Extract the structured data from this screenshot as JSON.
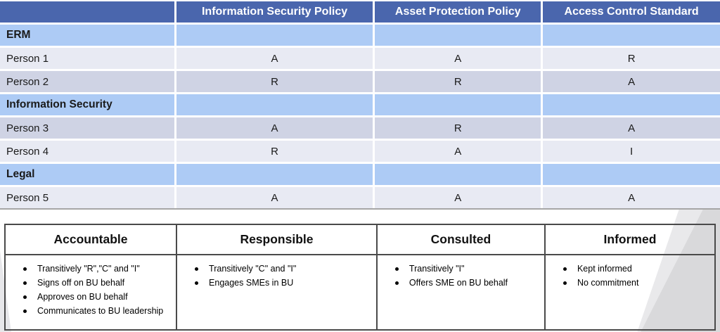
{
  "matrix_table": {
    "columns": [
      "",
      "Information Security Policy",
      "Asset Protection Policy",
      "Access Control Standard"
    ],
    "rows": [
      {
        "type": "section",
        "label": "ERM",
        "values": [
          "",
          "",
          ""
        ]
      },
      {
        "type": "person",
        "label": "Person 1",
        "values": [
          "A",
          "A",
          "R"
        ]
      },
      {
        "type": "person",
        "label": "Person 2",
        "values": [
          "R",
          "R",
          "A"
        ]
      },
      {
        "type": "section",
        "label": "Information Security",
        "values": [
          "",
          "",
          ""
        ]
      },
      {
        "type": "person",
        "label": "Person 3",
        "values": [
          "A",
          "R",
          "A"
        ]
      },
      {
        "type": "person",
        "label": "Person 4",
        "values": [
          "R",
          "A",
          "I"
        ]
      },
      {
        "type": "section",
        "label": "Legal",
        "values": [
          "",
          "",
          ""
        ]
      },
      {
        "type": "person",
        "label": "Person 5",
        "values": [
          "A",
          "A",
          "A"
        ]
      }
    ]
  },
  "legend_table": {
    "columns": [
      {
        "title": "Accountable",
        "bullets": [
          "Transitively \"R\",\"C\" and \"I\"",
          "Signs off on BU behalf",
          "Approves on BU behalf",
          "Communicates to BU leadership"
        ]
      },
      {
        "title": "Responsible",
        "bullets": [
          "Transitively \"C\" and \"I\"",
          "Engages SMEs in BU"
        ]
      },
      {
        "title": "Consulted",
        "bullets": [
          "Transitively \"I\"",
          "Offers SME on BU behalf"
        ]
      },
      {
        "title": "Informed",
        "bullets": [
          "Kept informed",
          "No commitment"
        ]
      }
    ]
  },
  "colors": {
    "header_bg": "#4A66AD",
    "section_bg": "#ADCBF5",
    "band_light": "#E8EAF3",
    "band_dark": "#CFD3E4",
    "table_bottom_line": "#A6A6A6",
    "legend_border": "#4A4A4A",
    "corner_light": "#E9E9EB",
    "corner_dark": "#D9D9DB",
    "corner_left": "#E7E7EA"
  }
}
